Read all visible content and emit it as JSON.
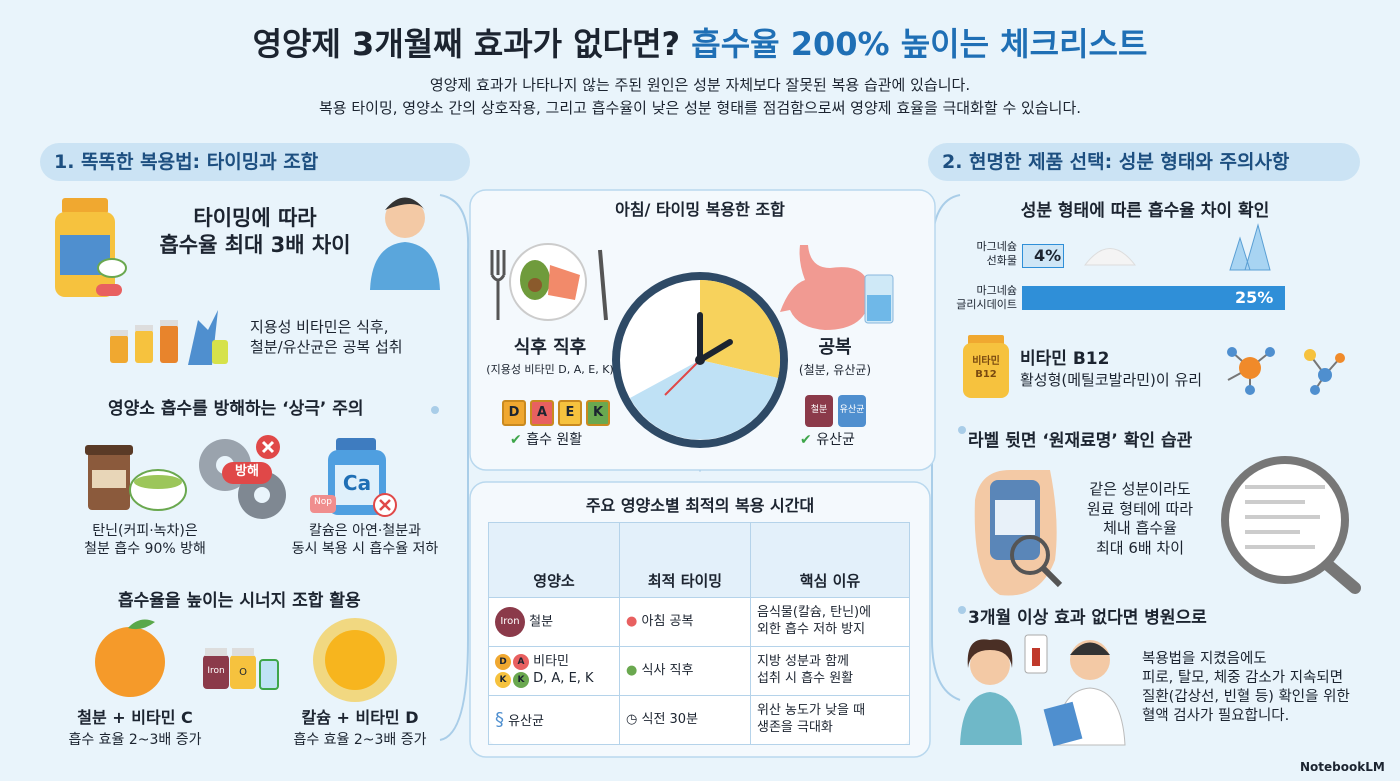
{
  "header": {
    "title_question": "영양제 3개월째 효과가 없다면?",
    "title_highlight": "흡수율 200% 높이는 체크리스트",
    "subtitle": [
      "영양제 효과가 나타나지 않는 주된 원인은 성분 자체보다 잘못된 복용 습관에 있습니다.",
      "복용 타이밍, 영양소 간의 상호작용, 그리고 흡수율이 낮은 성분 형태를 점검함으로써 영양제 효율을 극대화할 수 있습니다."
    ]
  },
  "left": {
    "heading": "1. 똑똑한 복용법: 타이밍과 조합",
    "timing": {
      "title": "타이밍에 따라\n흡수율 최대 3배 차이",
      "note": "지용성 비타민은 식후,\n철분/유산균은 공복 섭취"
    },
    "conflict": {
      "title": "영양소 흡수를 방해하는 ‘상극’ 주의",
      "badge": "방해",
      "bottle": "Ca",
      "tag": "Nop",
      "tannin": "탄닌(커피·녹차)은\n철분 흡수 90% 방해",
      "calcium": "칼슘은 아연·철분과\n동시 복용 시 흡수율 저하"
    },
    "synergy": {
      "title": "흡수율을 높이는 시너지 조합 활용",
      "bottles": [
        "Iron",
        "O"
      ],
      "combos": [
        {
          "name": "철분 + 비타민 C",
          "effect": "흡수 효율 2~3배 증가"
        },
        {
          "name": "칼슘 + 비타민 D",
          "effect": "흡수 효율 2~3배 증가"
        }
      ]
    }
  },
  "center": {
    "heading": "아침/ 타이밍 복용한 조합",
    "after_meal": {
      "label": "식후 직후",
      "sub": "(지용성 비타민 D, A, E, K)",
      "letters": [
        "D",
        "A",
        "E",
        "K"
      ],
      "check": "흡수 원활"
    },
    "empty": {
      "label": "공복",
      "sub": "(철분, 유산균)",
      "bottles": [
        "철분",
        "유산균"
      ],
      "check": "유산균"
    },
    "table": {
      "title": "주요 영양소별 최적의 복용 시간대",
      "headers": [
        "영양소",
        "최적 타이밍",
        "핵심 이유"
      ],
      "row_icon_iron": "Iron",
      "row_icon_letters": [
        "D",
        "A",
        "K",
        "K"
      ],
      "rows": [
        [
          "철분",
          "아침 공복",
          "음식물(칼슘, 탄닌)에\n외한 흡수 저하 방지"
        ],
        [
          "비타민\nD, A, E, K",
          "식사 직후",
          "지방 성분과 함께\n섭취 시 흡수 원활"
        ],
        [
          "유산균",
          "식전 30분",
          "위산 농도가 낮을 때\n생존을 극대화"
        ]
      ]
    }
  },
  "right": {
    "heading": "2. 현명한 제품 선택: 성분 형태와 주의사항",
    "forms": {
      "title": "성분 형태에 따른 흡수율 차이 확인",
      "items": [
        {
          "name": "마그네슘\n선화물",
          "value": 4,
          "label": "4%"
        },
        {
          "name": "마그네슘\n글리시데이트",
          "value": 25,
          "label": "25%"
        }
      ]
    },
    "b12": {
      "bottle": "비타민\nB12",
      "name": "비타민 B12",
      "note": "활성형(메틸코발라민)이 유리"
    },
    "label_check": {
      "title": "라벨 뒷면 ‘원재료명’ 확인 습관",
      "note": "같은 성분이라도\n원료 형테에 따라\n체내 흡수율\n최대 6배 차이"
    },
    "hospital": {
      "title": "3개월 이상 효과 없다면 병원으로",
      "note": "복용법을 지켰음에도\n피로, 탈모, 체중 감소가 지속되면\n질환(갑상선, 빈혈 등) 확인을 위한\n혈액 검사가 필요합니다."
    }
  },
  "footer": {
    "brand": "NotebookLM"
  }
}
